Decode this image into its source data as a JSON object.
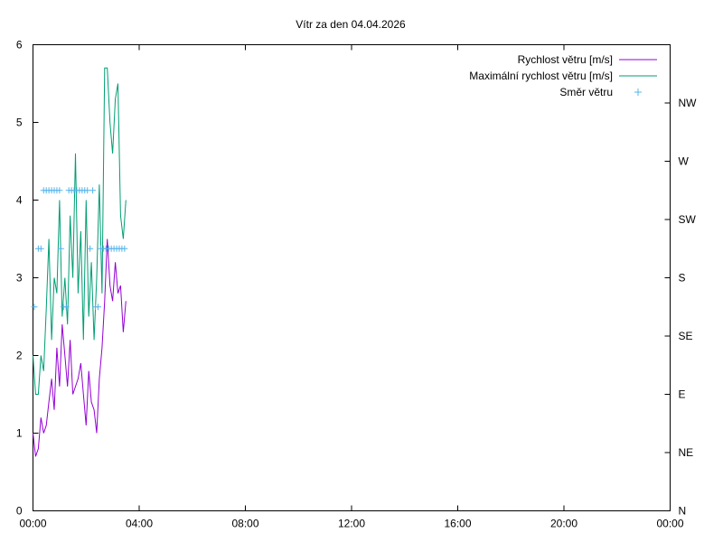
{
  "chart_data": {
    "type": "line",
    "title": "Vítr za den 04.04.2026",
    "x_ticks": [
      "00:00",
      "04:00",
      "08:00",
      "12:00",
      "16:00",
      "20:00",
      "00:00"
    ],
    "x_range_hours": [
      0,
      24
    ],
    "y_left_ticks": [
      "0",
      "1",
      "2",
      "3",
      "4",
      "5",
      "6"
    ],
    "ylim": [
      0,
      6
    ],
    "y_right_ticks": [
      "N",
      "NE",
      "E",
      "SE",
      "S",
      "SW",
      "W",
      "NW"
    ],
    "y_right_range_deg": [
      0,
      360
    ],
    "grid": false,
    "legend_position": "top-right",
    "series": [
      {
        "name": "Rychlost větru [m/s]",
        "axis": "left",
        "style": "line",
        "color": "#9400d3",
        "x": [
          0,
          0.1,
          0.2,
          0.3,
          0.4,
          0.5,
          0.6,
          0.7,
          0.8,
          0.9,
          1.0,
          1.1,
          1.2,
          1.3,
          1.4,
          1.5,
          1.6,
          1.7,
          1.8,
          1.9,
          2.0,
          2.1,
          2.2,
          2.3,
          2.4,
          2.5,
          2.6,
          2.7,
          2.8,
          2.9,
          3.0,
          3.1,
          3.2,
          3.3,
          3.4,
          3.5
        ],
        "y": [
          1.0,
          0.7,
          0.8,
          1.2,
          1.0,
          1.1,
          1.4,
          1.7,
          1.3,
          2.1,
          1.6,
          2.4,
          2.0,
          1.6,
          2.2,
          1.5,
          1.6,
          1.7,
          1.9,
          1.5,
          1.1,
          1.8,
          1.4,
          1.3,
          1.0,
          1.7,
          2.1,
          2.7,
          3.5,
          2.9,
          2.7,
          3.2,
          2.8,
          2.9,
          2.3,
          2.7
        ]
      },
      {
        "name": "Maximální rychlost větru [m/s]",
        "axis": "left",
        "style": "line",
        "color": "#009e73",
        "x": [
          0,
          0.1,
          0.2,
          0.3,
          0.4,
          0.5,
          0.6,
          0.7,
          0.8,
          0.9,
          1.0,
          1.1,
          1.2,
          1.3,
          1.4,
          1.5,
          1.6,
          1.7,
          1.8,
          1.9,
          2.0,
          2.1,
          2.2,
          2.3,
          2.4,
          2.5,
          2.6,
          2.7,
          2.8,
          2.9,
          3.0,
          3.1,
          3.2,
          3.3,
          3.4,
          3.5
        ],
        "y": [
          2.0,
          1.5,
          1.5,
          2.0,
          1.8,
          2.6,
          3.5,
          2.2,
          3.0,
          2.8,
          4.0,
          2.5,
          3.0,
          2.4,
          3.8,
          3.0,
          4.6,
          2.8,
          3.6,
          2.2,
          4.0,
          2.5,
          3.2,
          2.2,
          3.0,
          4.2,
          2.8,
          5.7,
          5.7,
          5.0,
          4.6,
          5.3,
          5.5,
          3.8,
          3.5,
          4.0
        ]
      },
      {
        "name": "Směr větru",
        "axis": "right",
        "style": "points",
        "marker": "+",
        "color": "#56b4e9",
        "x": [
          0.05,
          0.2,
          0.3,
          0.4,
          0.5,
          0.6,
          0.7,
          0.8,
          0.9,
          1.0,
          1.05,
          1.15,
          1.25,
          1.35,
          1.45,
          1.55,
          1.65,
          1.75,
          1.85,
          1.95,
          2.05,
          2.15,
          2.25,
          2.35,
          2.45,
          2.55,
          2.65,
          2.75,
          2.85,
          2.95,
          3.05,
          3.15,
          3.25,
          3.35,
          3.45
        ],
        "y": [
          157.5,
          202.5,
          202.5,
          247.5,
          247.5,
          247.5,
          247.5,
          247.5,
          247.5,
          247.5,
          202.5,
          157.5,
          157.5,
          247.5,
          247.5,
          247.5,
          247.5,
          247.5,
          247.5,
          247.5,
          247.5,
          202.5,
          247.5,
          157.5,
          157.5,
          202.5,
          202.5,
          202.5,
          202.5,
          202.5,
          202.5,
          202.5,
          202.5,
          202.5,
          202.5
        ]
      }
    ]
  }
}
